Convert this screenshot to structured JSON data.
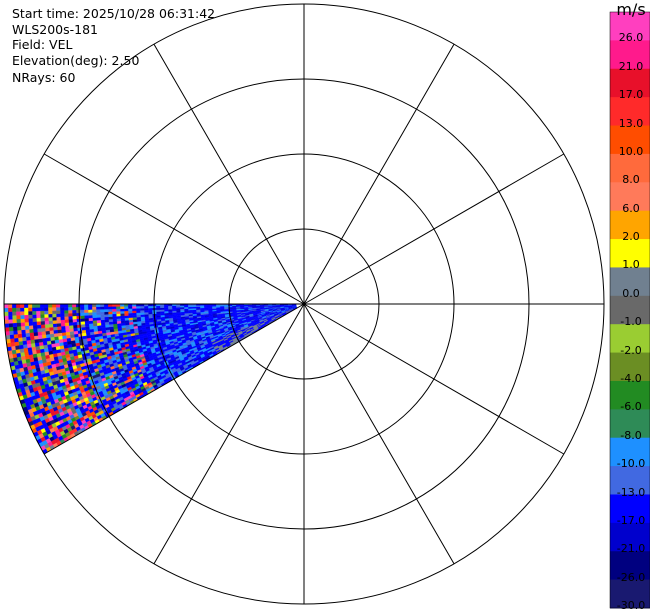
{
  "header": {
    "start_time": "Start time: 2025/10/28 06:31:42",
    "instrument": "WLS200s-181",
    "field": "Field: VEL",
    "elevation": "Elevation(deg): 2.50",
    "nrays": "NRays: 60"
  },
  "chart_data": {
    "type": "heatmap",
    "projection": "polar-ppi",
    "field": "VEL",
    "units": "m/s",
    "elevation_deg": 2.5,
    "nrays": 60,
    "range_rings": 4,
    "radial_spokes_deg": [
      0,
      30,
      60,
      90,
      120,
      150,
      180,
      210,
      240,
      270,
      300,
      330
    ],
    "data_sector_azimuth_deg": [
      240,
      270
    ],
    "data_description": "near range dominated by -17 to -13 m/s (blue); far range noisy mix of all colors",
    "colorbar": {
      "title": "m/s",
      "ticks": [
        "26.0",
        "21.0",
        "17.0",
        "13.0",
        "10.0",
        "8.0",
        "6.0",
        "2.0",
        "1.0",
        "0.0",
        "-1.0",
        "-2.0",
        "-4.0",
        "-6.0",
        "-8.0",
        "-10.0",
        "-13.0",
        "-17.0",
        "-21.0",
        "-26.0",
        "-30.0"
      ],
      "bins": [
        {
          "from": 26,
          "to": 30,
          "color": "#ff3fbf"
        },
        {
          "from": 21,
          "to": 26,
          "color": "#ff1a8c"
        },
        {
          "from": 17,
          "to": 21,
          "color": "#e8102a"
        },
        {
          "from": 13,
          "to": 17,
          "color": "#ff2a2a"
        },
        {
          "from": 10,
          "to": 13,
          "color": "#ff4d00"
        },
        {
          "from": 8,
          "to": 10,
          "color": "#ff6a3c"
        },
        {
          "from": 6,
          "to": 8,
          "color": "#ff7a5a"
        },
        {
          "from": 2,
          "to": 6,
          "color": "#ffa500"
        },
        {
          "from": 1,
          "to": 2,
          "color": "#ffff00"
        },
        {
          "from": 0,
          "to": 1,
          "color": "#708090"
        },
        {
          "from": -1,
          "to": 0,
          "color": "#696969"
        },
        {
          "from": -2,
          "to": -1,
          "color": "#9acd32"
        },
        {
          "from": -4,
          "to": -2,
          "color": "#6b8e23"
        },
        {
          "from": -6,
          "to": -4,
          "color": "#228b22"
        },
        {
          "from": -8,
          "to": -6,
          "color": "#2e8b57"
        },
        {
          "from": -10,
          "to": -8,
          "color": "#1e90ff"
        },
        {
          "from": -13,
          "to": -10,
          "color": "#4169e1"
        },
        {
          "from": -17,
          "to": -13,
          "color": "#0000ff"
        },
        {
          "from": -21,
          "to": -17,
          "color": "#0000cd"
        },
        {
          "from": -26,
          "to": -21,
          "color": "#000080"
        },
        {
          "from": -30,
          "to": -26,
          "color": "#191970"
        }
      ]
    }
  }
}
